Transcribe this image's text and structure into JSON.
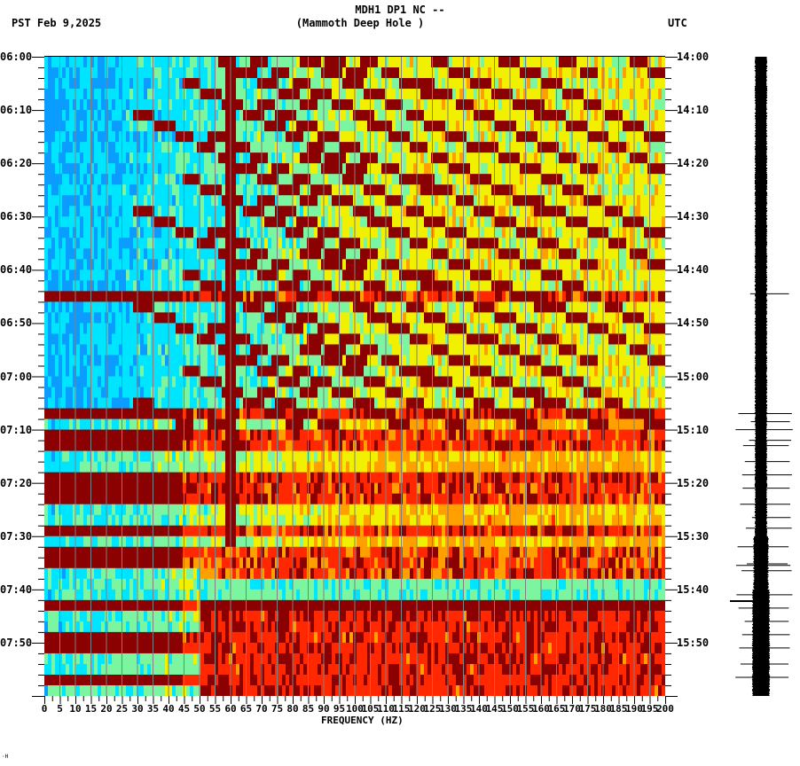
{
  "header": {
    "title_line1": "MDH1 DP1 NC --",
    "title_line2": "(Mammoth Deep Hole )",
    "left_timezone_date": "PST  Feb 9,2025",
    "right_timezone": "UTC"
  },
  "footer_mark": "·H",
  "chart_data": {
    "type": "heatmap",
    "title": "MDH1 DP1 NC -- (Mammoth Deep Hole )",
    "subtitle": "Spectrogram, Feb 9, 2025",
    "xlabel": "FREQUENCY (HZ)",
    "ylabel_left": "PST",
    "ylabel_right": "UTC",
    "xlim": [
      0,
      200
    ],
    "x_ticks": [
      0,
      5,
      10,
      15,
      20,
      25,
      30,
      35,
      40,
      45,
      50,
      55,
      60,
      65,
      70,
      75,
      80,
      85,
      90,
      95,
      100,
      105,
      110,
      115,
      120,
      125,
      130,
      135,
      140,
      145,
      150,
      155,
      160,
      165,
      170,
      175,
      180,
      185,
      190,
      195,
      200
    ],
    "x_grid_step_hz": 5,
    "y_ticks_left": [
      "06:00",
      "06:10",
      "06:20",
      "06:30",
      "06:40",
      "06:50",
      "07:00",
      "07:10",
      "07:20",
      "07:30",
      "07:40",
      "07:50"
    ],
    "y_ticks_right": [
      "14:00",
      "14:10",
      "14:20",
      "14:30",
      "14:40",
      "14:50",
      "15:00",
      "15:10",
      "15:20",
      "15:30",
      "15:40",
      "15:50"
    ],
    "time_range_minutes": [
      0,
      120
    ],
    "colormap": [
      "#0050ff",
      "#0a9cff",
      "#00e5ff",
      "#7cf5a0",
      "#f0f000",
      "#ffa000",
      "#ff2800",
      "#8b0000"
    ],
    "persistent_lines_hz": [
      60
    ],
    "features": {
      "harmonic_sweeps": "Curved descending-frequency harmonic tracks (dark red) from ~06:00 to ~07:10 between 20 and 150 Hz",
      "broadband_bursts_minutes": [
        44.5,
        67,
        71,
        73.5,
        76,
        78.5,
        81,
        83.5,
        86,
        88.5,
        93.5,
        95.5,
        103.5,
        106,
        109,
        111.5,
        114,
        116.5
      ],
      "high_energy_block_minutes": [
        102,
        120
      ],
      "high_energy_block_hz": [
        50,
        200
      ]
    }
  },
  "seismogram": {
    "label": "waveform trace",
    "spike_minutes": [
      44.5,
      67,
      68.5,
      70,
      72,
      73,
      76,
      78.5,
      81,
      84,
      86.5,
      88.5,
      92,
      95.5,
      96.5,
      101,
      103.5,
      106,
      108.5,
      111,
      114,
      116.5
    ]
  }
}
